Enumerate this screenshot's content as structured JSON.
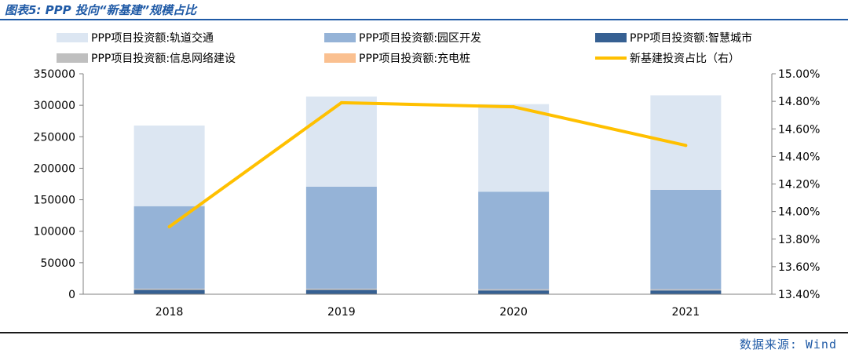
{
  "header": {
    "title": "图表5: PPP 投向“新基建”规模占比"
  },
  "source": "数据来源: Wind",
  "chart_data": {
    "type": "bar",
    "stacked": true,
    "categories": [
      "2018",
      "2019",
      "2020",
      "2021"
    ],
    "series": [
      {
        "name": "PPP项目投资额:轨道交通",
        "color": "#dce6f2",
        "values": [
          128000,
          143000,
          139000,
          150000
        ]
      },
      {
        "name": "PPP项目投资额:园区开发",
        "color": "#95b3d7",
        "values": [
          131000,
          162000,
          155000,
          158000
        ]
      },
      {
        "name": "PPP项目投资额:智慧城市",
        "color": "#366092",
        "values": [
          7000,
          7000,
          6000,
          6000
        ]
      },
      {
        "name": "PPP项目投资额:信息网络建设",
        "color": "#bfbfbf",
        "values": [
          1500,
          1500,
          1500,
          1500
        ]
      },
      {
        "name": "PPP项目投资额:充电桩",
        "color": "#fac090",
        "values": [
          300,
          300,
          300,
          300
        ]
      }
    ],
    "line_series": {
      "name": "新基建投资占比（右）",
      "color": "#ffc000",
      "values": [
        13.89,
        14.79,
        14.76,
        14.48
      ]
    },
    "y_left": {
      "ylim": [
        0,
        350000
      ],
      "ticks": [
        "0",
        "50000",
        "100000",
        "150000",
        "200000",
        "250000",
        "300000",
        "350000"
      ]
    },
    "y_right": {
      "ylim": [
        13.4,
        15.0
      ],
      "ticks": [
        "13.40%",
        "13.60%",
        "13.80%",
        "14.00%",
        "14.20%",
        "14.40%",
        "14.60%",
        "14.80%",
        "15.00%"
      ]
    },
    "legend_position": "top"
  }
}
